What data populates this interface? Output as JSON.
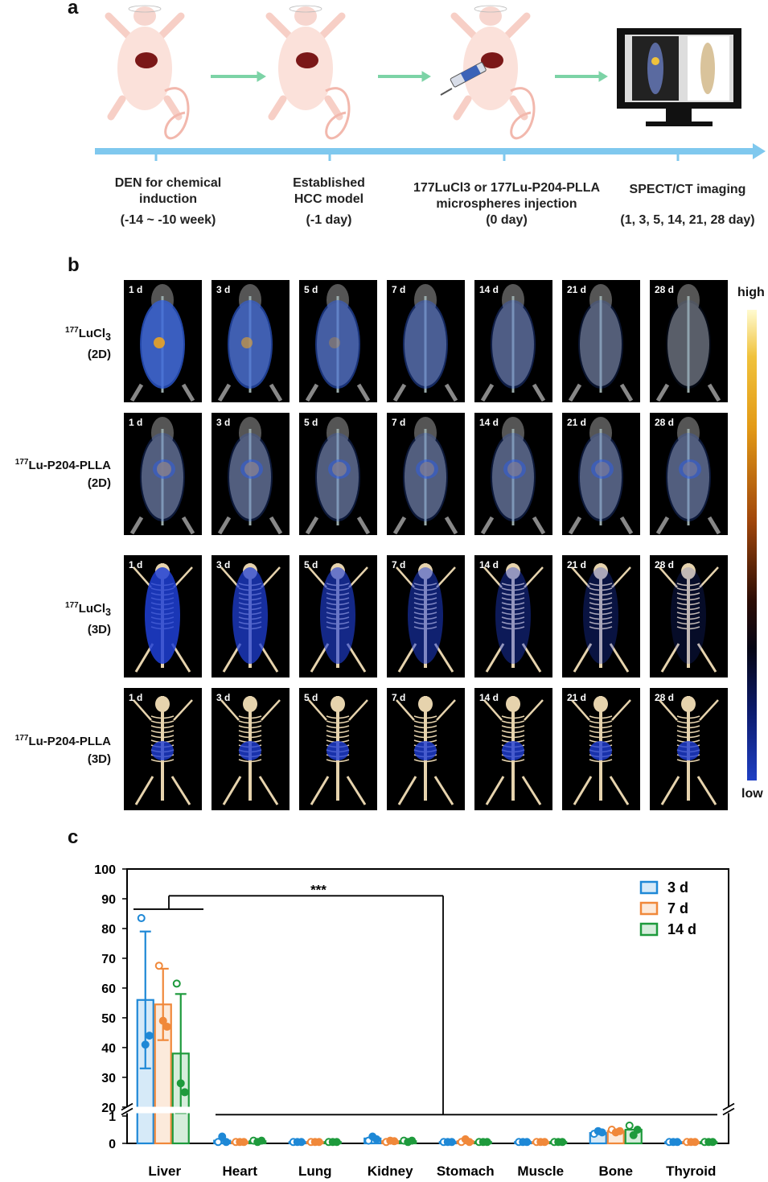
{
  "panel_a": {
    "letter": "a",
    "steps": [
      {
        "line1": "DEN for chemical",
        "line2": "induction",
        "time": "(-14 ~ -10 week)"
      },
      {
        "line1": "Established",
        "line2": "HCC model",
        "time": "(-1 day)"
      },
      {
        "line1": "177LuCl3 or 177Lu-P204-PLLA",
        "line2": "microspheres injection",
        "time": "(0 day)"
      },
      {
        "line1": "SPECT/CT imaging",
        "line2": "",
        "time": "(1, 3, 5, 14, 21, 28 day)"
      }
    ],
    "icons": [
      "mouse-icon",
      "syringe-icon",
      "monitor-icon",
      "timeline-arrow"
    ]
  },
  "panel_b": {
    "letter": "b",
    "days": [
      "1 d",
      "3 d",
      "5 d",
      "7 d",
      "14 d",
      "21 d",
      "28 d"
    ],
    "rows": [
      {
        "iso": "177",
        "name": "LuCl",
        "sub": "3",
        "mode": "(2D)"
      },
      {
        "iso": "177",
        "name": "Lu-P204-PLLA",
        "sub": "",
        "mode": "(2D)"
      },
      {
        "iso": "177",
        "name": "LuCl",
        "sub": "3",
        "mode": "(3D)"
      },
      {
        "iso": "177",
        "name": "Lu-P204-PLLA",
        "sub": "",
        "mode": "(3D)"
      }
    ],
    "colorbar": {
      "high": "high",
      "low": "low"
    }
  },
  "panel_c": {
    "letter": "c",
    "significance": "***",
    "legend": [
      "3 d",
      "7 d",
      "14 d"
    ]
  },
  "chart_data": {
    "type": "bar",
    "categories": [
      "Liver",
      "Heart",
      "Lung",
      "Kidney",
      "Stomach",
      "Muscle",
      "Bone",
      "Thyroid"
    ],
    "y_upper_ticks": [
      20,
      30,
      40,
      50,
      60,
      70,
      80,
      90,
      100
    ],
    "y_lower_ticks": [
      0,
      1
    ],
    "broken_axis": {
      "lower": [
        0,
        1
      ],
      "upper": [
        17,
        100
      ]
    },
    "series": [
      {
        "name": "3 d",
        "color": "#1e88d6",
        "values": [
          56,
          0.1,
          0.05,
          0.18,
          0.05,
          0.05,
          0.38,
          0.05
        ],
        "errors": [
          23,
          0,
          0,
          0,
          0,
          0,
          0,
          0
        ],
        "points": [
          [
            83.5,
            41,
            44
          ],
          [
            0.05,
            0.25,
            0.05
          ],
          [
            0.05,
            0.05,
            0.05
          ],
          [
            0.1,
            0.25,
            0.15
          ],
          [
            0.05,
            0.05,
            0.05
          ],
          [
            0.05,
            0.05,
            0.05
          ],
          [
            0.35,
            0.45,
            0.4
          ],
          [
            0.05,
            0.05,
            0.05
          ]
        ]
      },
      {
        "name": "7 d",
        "color": "#f0883a",
        "values": [
          54.5,
          0.05,
          0.05,
          0.08,
          0.08,
          0.05,
          0.45,
          0.05
        ],
        "errors": [
          12,
          0,
          0,
          0,
          0,
          0,
          0,
          0
        ],
        "points": [
          [
            67.5,
            49,
            47
          ],
          [
            0.05,
            0.05,
            0.05
          ],
          [
            0.05,
            0.05,
            0.05
          ],
          [
            0.05,
            0.1,
            0.08
          ],
          [
            0.05,
            0.15,
            0.05
          ],
          [
            0.05,
            0.05,
            0.05
          ],
          [
            0.5,
            0.4,
            0.45
          ],
          [
            0.05,
            0.05,
            0.05
          ]
        ]
      },
      {
        "name": "14 d",
        "color": "#1e9a3c",
        "values": [
          38,
          0.08,
          0.05,
          0.08,
          0.05,
          0.05,
          0.5,
          0.05
        ],
        "errors": [
          20,
          0,
          0,
          0,
          0,
          0,
          0,
          0
        ],
        "points": [
          [
            61.5,
            28,
            25
          ],
          [
            0.1,
            0.05,
            0.1
          ],
          [
            0.05,
            0.05,
            0.05
          ],
          [
            0.1,
            0.05,
            0.1
          ],
          [
            0.05,
            0.05,
            0.05
          ],
          [
            0.05,
            0.05,
            0.05
          ],
          [
            0.65,
            0.3,
            0.5
          ],
          [
            0.05,
            0.05,
            0.05
          ]
        ]
      }
    ]
  }
}
